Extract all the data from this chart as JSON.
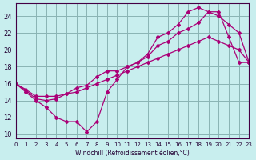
{
  "xlabel": "Windchill (Refroidissement éolien,°C)",
  "ylabel": "",
  "bg_color": "#c8eeee",
  "grid_color": "#8ab4b4",
  "line_color": "#aa0077",
  "xlim": [
    0,
    23
  ],
  "ylim": [
    9.5,
    25.5
  ],
  "xticks": [
    0,
    1,
    2,
    3,
    4,
    5,
    6,
    7,
    8,
    9,
    10,
    11,
    12,
    13,
    14,
    15,
    16,
    17,
    18,
    19,
    20,
    21,
    22,
    23
  ],
  "yticks": [
    10,
    12,
    14,
    16,
    18,
    20,
    22,
    24
  ],
  "line1_x": [
    0,
    1,
    2,
    3,
    4,
    5,
    6,
    7,
    8,
    9,
    10,
    11,
    12,
    13,
    14,
    15,
    16,
    17,
    18,
    19,
    20,
    21,
    22,
    23
  ],
  "line1_y": [
    16,
    15,
    14,
    13.2,
    12.0,
    11.5,
    11.5,
    10.3,
    11.5,
    15.0,
    16.5,
    18.0,
    18.5,
    19.5,
    21.5,
    22.0,
    23.0,
    24.5,
    25.0,
    24.5,
    24.5,
    21.5,
    18.5,
    18.5
  ],
  "line2_x": [
    0,
    1,
    2,
    3,
    4,
    5,
    6,
    7,
    8,
    9,
    10,
    11,
    12,
    13,
    14,
    15,
    16,
    17,
    18,
    19,
    20,
    21,
    22,
    23
  ],
  "line2_y": [
    16,
    15.2,
    14.2,
    14.0,
    14.2,
    14.8,
    15.5,
    15.8,
    16.8,
    17.5,
    17.5,
    18.0,
    18.5,
    19.2,
    20.5,
    21.0,
    22.0,
    22.5,
    23.2,
    24.5,
    24.0,
    23.0,
    22.0,
    18.5
  ],
  "line3_x": [
    0,
    1,
    2,
    3,
    4,
    5,
    6,
    7,
    8,
    9,
    10,
    11,
    12,
    13,
    14,
    15,
    16,
    17,
    18,
    19,
    20,
    21,
    22,
    23
  ],
  "line3_y": [
    16,
    15.3,
    14.5,
    14.5,
    14.5,
    14.8,
    15.0,
    15.5,
    16.0,
    16.5,
    17.0,
    17.5,
    18.0,
    18.5,
    19.0,
    19.5,
    20.0,
    20.5,
    21.0,
    21.5,
    21.0,
    20.5,
    20.0,
    18.5
  ]
}
